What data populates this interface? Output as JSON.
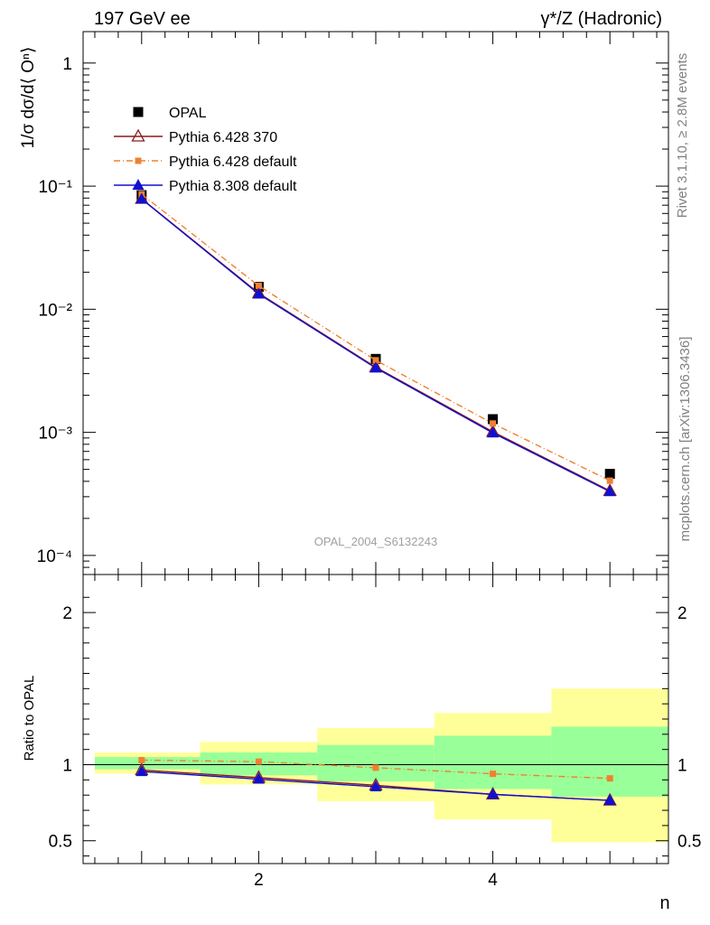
{
  "header": {
    "left": "197 GeV ee",
    "right": "γ*/Z (Hadronic)"
  },
  "side_text": {
    "top": "Rivet 3.1.10, ≥ 2.8M events",
    "bottom": "mcplots.cern.ch [arXiv:1306.3436]"
  },
  "watermark": "OPAL_2004_S6132243",
  "chart_data": [
    {
      "type": "line",
      "panel": "main",
      "ylabel": "1/σ dσ/d⟨ Oⁿ⟩",
      "xlabel": "n",
      "yscale": "log",
      "xlim": [
        0.5,
        5.5
      ],
      "ylim": [
        7e-05,
        1.8
      ],
      "ytick_labels": [
        "1",
        "10⁻¹",
        "10⁻²",
        "10⁻³",
        "10⁻⁴"
      ],
      "ytick_values": [
        1,
        0.1,
        0.01,
        0.001,
        0.0001
      ],
      "legend_position": "top-left",
      "x": [
        1,
        2,
        3,
        4,
        5
      ],
      "series": [
        {
          "name": "OPAL",
          "style": "data",
          "color": "#000000",
          "values": [
            0.0845,
            0.0152,
            0.00395,
            0.00128,
            0.00046
          ]
        },
        {
          "name": "Pythia 6.428 370",
          "style": "line-open-triangle",
          "color": "#8b1a1a",
          "values": [
            0.079,
            0.0135,
            0.00338,
            0.00101,
            0.000335
          ]
        },
        {
          "name": "Pythia 6.428 default",
          "style": "dashdot-square",
          "color": "#f08030",
          "values": [
            0.086,
            0.0155,
            0.00385,
            0.00118,
            0.000405
          ]
        },
        {
          "name": "Pythia 8.308 default",
          "style": "line-filled-triangle",
          "color": "#1010d0",
          "values": [
            0.0785,
            0.0133,
            0.00333,
            0.00099,
            0.00033
          ]
        }
      ]
    },
    {
      "type": "line",
      "panel": "ratio",
      "ylabel": "Ratio to OPAL",
      "xlabel": "n",
      "ylim": [
        0.35,
        2.25
      ],
      "ytick_labels": [
        "0.5",
        "1",
        "2"
      ],
      "ytick_values": [
        0.5,
        1,
        2
      ],
      "xtick_labels": [
        "2",
        "4"
      ],
      "xtick_values": [
        2,
        4
      ],
      "xlim": [
        0.5,
        5.5
      ],
      "bands": [
        {
          "x": [
            0.6,
            1.5
          ],
          "green": [
            0.97,
            1.05
          ],
          "yellow": [
            0.94,
            1.08
          ]
        },
        {
          "x": [
            1.5,
            2.5
          ],
          "green": [
            0.93,
            1.08
          ],
          "yellow": [
            0.87,
            1.15
          ]
        },
        {
          "x": [
            2.5,
            3.5
          ],
          "green": [
            0.89,
            1.13
          ],
          "yellow": [
            0.76,
            1.24
          ]
        },
        {
          "x": [
            3.5,
            4.5
          ],
          "green": [
            0.84,
            1.19
          ],
          "yellow": [
            0.64,
            1.34
          ]
        },
        {
          "x": [
            4.5,
            5.5
          ],
          "green": [
            0.79,
            1.25
          ],
          "yellow": [
            0.49,
            1.5
          ]
        }
      ],
      "x": [
        1,
        2,
        3,
        4,
        5
      ],
      "series": [
        {
          "name": "Pythia 6.428 370",
          "style": "line-open-triangle",
          "color": "#8b1a1a",
          "values": [
            0.965,
            0.915,
            0.865,
            0.805,
            0.765
          ]
        },
        {
          "name": "Pythia 6.428 default",
          "style": "dashdot-square",
          "color": "#f08030",
          "values": [
            1.03,
            1.02,
            0.98,
            0.94,
            0.91
          ]
        },
        {
          "name": "Pythia 8.308 default",
          "style": "line-filled-triangle",
          "color": "#1010d0",
          "values": [
            0.955,
            0.905,
            0.855,
            0.805,
            0.765
          ]
        }
      ]
    }
  ]
}
